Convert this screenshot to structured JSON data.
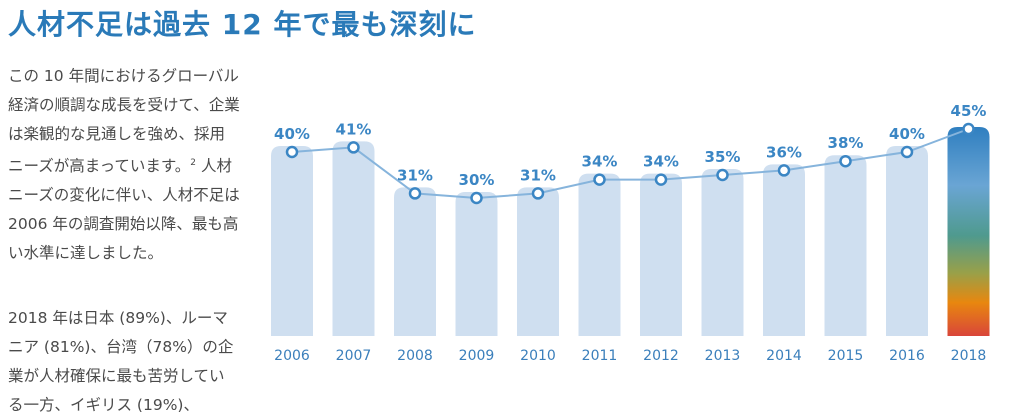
{
  "title": "人材不足は過去 12 年で最も深刻に",
  "paragraphs": {
    "p1_main": "この 10 年間におけるグローバル経済の順調な成長を受けて、企業は楽観的な見通しを強め、採用ニーズが高まっています。",
    "p1_footnote": "2",
    "p1_rest": " 人材ニーズの変化に伴い、人材不足は 2006 年の調査開始以降、最も高い水準に達しました。",
    "p2": "2018 年は日本 (89%)、ルーマニア (81%)、台湾（78%）の企業が人材確保に最も苦労している一方、イギリス (19%)、"
  },
  "chart_data": {
    "type": "bar",
    "categories": [
      "2006",
      "2007",
      "2008",
      "2009",
      "2010",
      "2011",
      "2012",
      "2013",
      "2014",
      "2015",
      "2016",
      "2018"
    ],
    "values": [
      40,
      41,
      31,
      30,
      31,
      34,
      34,
      35,
      36,
      38,
      40,
      45
    ],
    "value_labels": [
      "40%",
      "41%",
      "31%",
      "30%",
      "31%",
      "34%",
      "34%",
      "35%",
      "36%",
      "38%",
      "40%",
      "45%"
    ],
    "ylim": [
      0,
      45
    ],
    "grid": false,
    "colors": {
      "bar": "#cfdff0",
      "line": "#86b4dc",
      "marker": "#3b86c4",
      "highlight_gradient": [
        "#2f7fc0",
        "#6aa5d4",
        "#4f9a8e",
        "#9aa048",
        "#e8870f",
        "#d9453a"
      ]
    }
  }
}
